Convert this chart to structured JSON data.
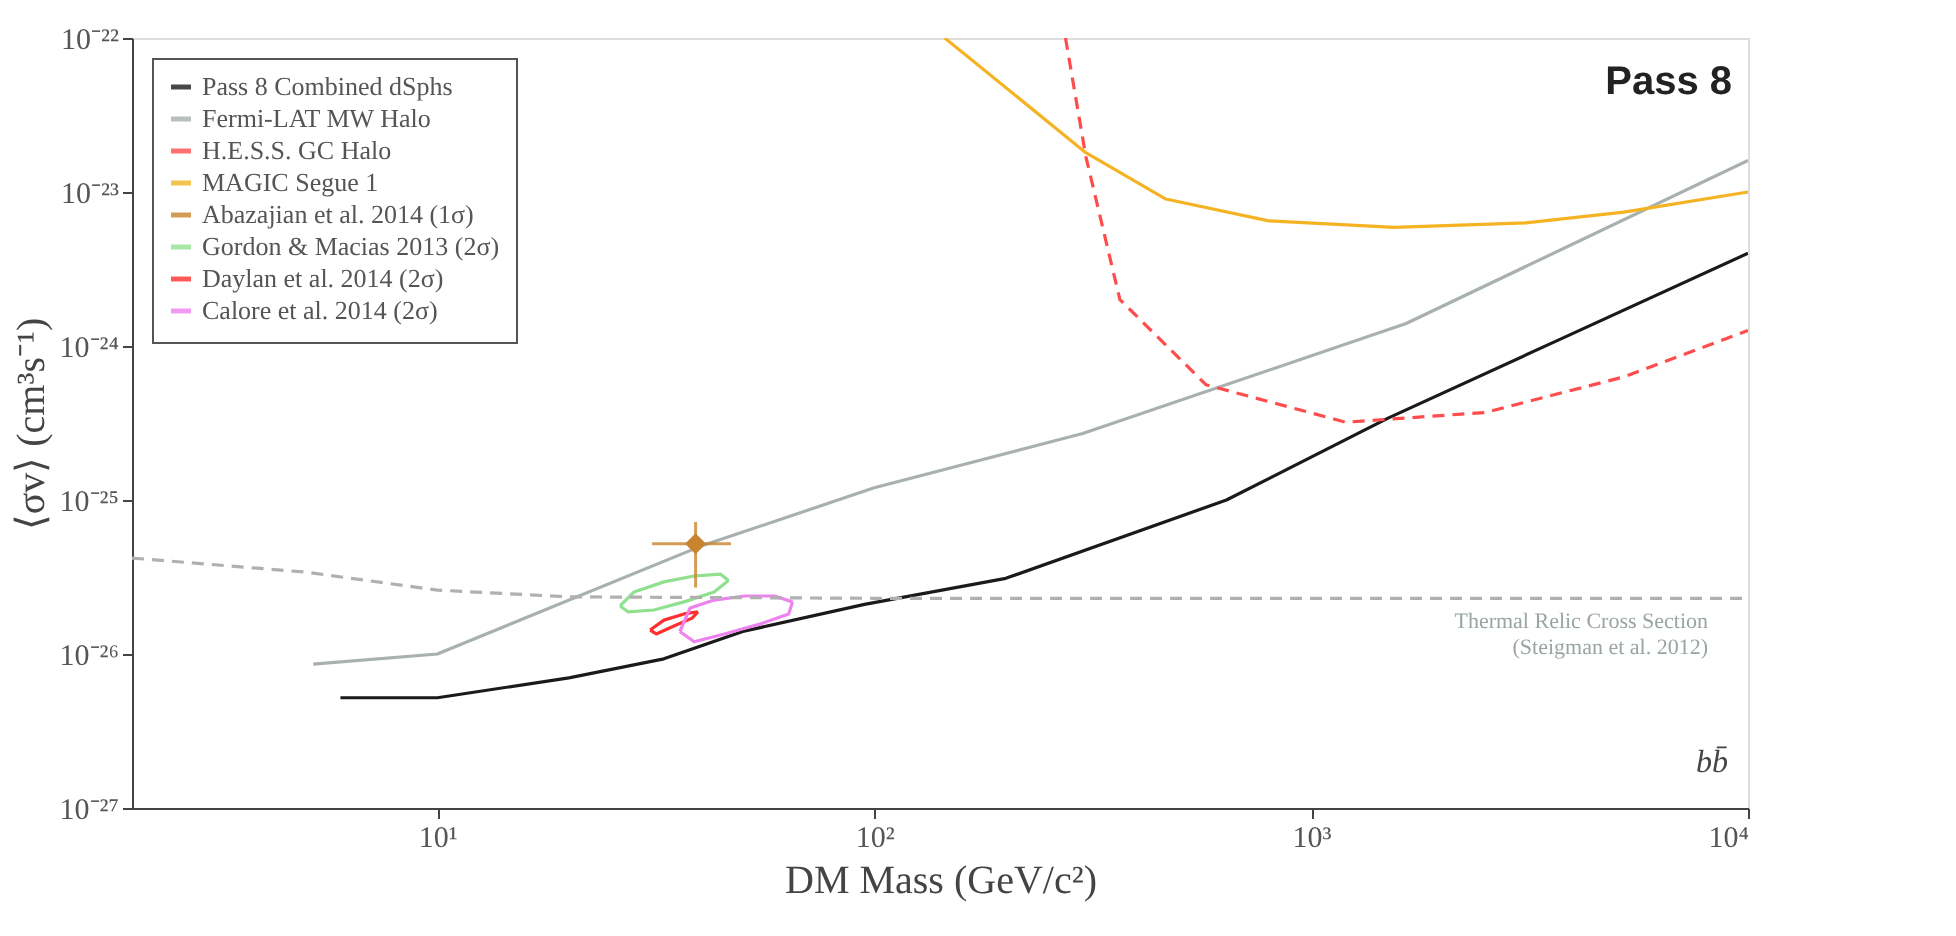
{
  "chart_data": {
    "type": "line",
    "xlabel": "DM Mass (GeV/c²)",
    "ylabel": "⟨σv⟩ (cm³s⁻¹)",
    "log": "xy",
    "legend": "top left",
    "xlim": [
      2,
      10000
    ],
    "ylim": [
      1e-27,
      1e-22
    ],
    "xticks": [
      {
        "value": 10,
        "label": "10¹"
      },
      {
        "value": 100,
        "label": "10²"
      },
      {
        "value": 1000,
        "label": "10³"
      },
      {
        "value": 10000,
        "label": "10⁴"
      }
    ],
    "yticks": [
      {
        "value": 1e-27,
        "label": "10⁻²⁷"
      },
      {
        "value": 1e-26,
        "label": "10⁻²⁶"
      },
      {
        "value": 1e-25,
        "label": "10⁻²⁵"
      },
      {
        "value": 1e-24,
        "label": "10⁻²⁴"
      },
      {
        "value": 1e-23,
        "label": "10⁻²³"
      },
      {
        "value": 1e-22,
        "label": "10⁻²²"
      }
    ],
    "annotations": [
      "Pass 8",
      "bb̄",
      "Thermal Relic Cross Section",
      "(Steigman et al. 2012)"
    ],
    "series": [
      {
        "name": "Pass 8 Combined dSphs",
        "color": "#1a1a1a",
        "x": [
          6,
          10,
          20,
          33,
          50,
          95,
          200,
          640,
          1500,
          3700,
          10000
        ],
        "values": [
          5.2e-27,
          5.2e-27,
          7e-27,
          9.3e-27,
          1.4e-26,
          2.1e-26,
          3.1e-26,
          1e-25,
          3.4e-25,
          1.1e-24,
          4e-24
        ]
      },
      {
        "name": "Fermi-LAT MW Halo",
        "color": "#a8b0b0",
        "x": [
          5.2,
          10,
          40,
          100,
          300,
          1650,
          10000
        ],
        "values": [
          8.6e-27,
          1e-26,
          5e-26,
          1.2e-25,
          2.7e-25,
          1.4e-24,
          1.6e-23
        ]
      },
      {
        "name": "H.E.S.S. GC Halo",
        "color": "#ff4d4d",
        "line_style": "dashed",
        "x": [
          274,
          305,
          365,
          575,
          1200,
          2500,
          5200,
          10000
        ],
        "values": [
          1e-22,
          1.7e-23,
          2e-24,
          5.6e-25,
          3.2e-25,
          3.7e-25,
          6.3e-25,
          1.26e-24
        ]
      },
      {
        "name": "MAGIC Segue 1",
        "color": "#f5b324",
        "x": [
          145,
          305,
          465,
          800,
          1550,
          3100,
          5200,
          10000
        ],
        "values": [
          1e-22,
          1.8e-23,
          9e-24,
          6.5e-24,
          5.9e-24,
          6.3e-24,
          7.4e-24,
          1e-23
        ]
      },
      {
        "name": "Abazajian et al. 2014 (1σ)",
        "type": "scatter",
        "marker": "diamond",
        "color": "#c8842e",
        "x": [
          39
        ],
        "values": [
          5.2e-26
        ],
        "errors": [
          [
            2.7e-26,
            7.2e-26
          ]
        ],
        "xerrors": [
          [
            31,
            47
          ]
        ]
      },
      {
        "name": "Gordon & Macias 2013 (2σ)",
        "color": "#90e090",
        "x": [
          26.2,
          28.2,
          33.0,
          38.7,
          44.5,
          46.4
        ],
        "values": [
          2.05e-26,
          2.53e-26,
          2.94e-26,
          3.21e-26,
          3.3e-26,
          3e-26
        ]
      },
      {
        "color": "#90e090",
        "x": [
          46.4,
          43.0,
          36.7,
          31.3,
          27.3,
          26.2
        ],
        "values": [
          3e-26,
          2.53e-26,
          2.18e-26,
          1.93e-26,
          1.88e-26,
          2.05e-26
        ]
      },
      {
        "name": "Daylan et al. 2014 (2σ)",
        "color": "#ff3030",
        "x": [
          30.7,
          33.0,
          36.7,
          39.5
        ],
        "values": [
          1.43e-26,
          1.66e-26,
          1.82e-26,
          1.88e-26
        ]
      },
      {
        "color": "#ff3030",
        "x": [
          39.5,
          38.3,
          34.8,
          31.7,
          30.7
        ],
        "values": [
          1.88e-26,
          1.71e-26,
          1.52e-26,
          1.35e-26,
          1.43e-26
        ]
      },
      {
        "name": "Calore et al. 2014 (2σ)",
        "color": "#ee82ee",
        "x": [
          35.9,
          37.9,
          43.0,
          50.5,
          59.1,
          65.0
        ],
        "values": [
          1.4e-26,
          1.99e-26,
          2.24e-26,
          2.38e-26,
          2.38e-26,
          2.18e-26
        ]
      },
      {
        "color": "#ee82ee",
        "x": [
          65.0,
          63.7,
          55.0,
          45.4,
          38.7,
          35.9
        ],
        "values": [
          2.18e-26,
          1.82e-26,
          1.57e-26,
          1.35e-26,
          1.2e-26,
          1.4e-26
        ]
      },
      {
        "color": "#b0b0b0",
        "line_style": "dashed",
        "x": [
          2,
          5,
          10,
          20,
          100,
          10000
        ],
        "values": [
          4.2e-26,
          3.4e-26,
          2.6e-26,
          2.35e-26,
          2.3e-26,
          2.3e-26
        ]
      }
    ]
  }
}
